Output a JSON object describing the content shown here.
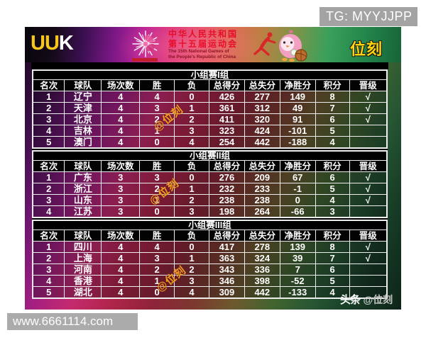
{
  "overlays": {
    "telegram_badge": "TG: MYYJJPP",
    "website": "www.6661114.com",
    "diagonal_watermark": "@位刻",
    "credit_bold": "头条",
    "credit_handle": "@位刻"
  },
  "banner": {
    "logo_left_primary": "UU",
    "logo_left_secondary": "K",
    "title_cn_line1": "中华人民共和国",
    "title_cn_line2": "第十五届运动会",
    "title_en_line1": "The 15th National Games of",
    "title_en_line2": "the People's Republic of China",
    "logo_right": "位刻",
    "accent_colors": {
      "logo_yellow": "#f7c51e",
      "title_red": "#e50f2a",
      "check_white": "#ffffff"
    }
  },
  "chart_data": [
    {
      "type": "table",
      "title": "小组赛I组",
      "columns": [
        "名次",
        "球队",
        "场次数",
        "胜",
        "负",
        "总得分",
        "总失分",
        "净胜分",
        "积分",
        "晋级"
      ],
      "rows": [
        [
          "1",
          "辽宁",
          "4",
          "4",
          "0",
          "426",
          "277",
          "149",
          "8",
          "√"
        ],
        [
          "2",
          "天津",
          "4",
          "3",
          "1",
          "361",
          "312",
          "49",
          "7",
          "√"
        ],
        [
          "3",
          "北京",
          "4",
          "2",
          "2",
          "411",
          "320",
          "91",
          "6",
          "√"
        ],
        [
          "4",
          "吉林",
          "4",
          "1",
          "3",
          "323",
          "424",
          "-101",
          "5",
          ""
        ],
        [
          "5",
          "澳门",
          "4",
          "0",
          "4",
          "254",
          "442",
          "-188",
          "4",
          ""
        ]
      ]
    },
    {
      "type": "table",
      "title": "小组赛II组",
      "columns": [
        "名次",
        "球队",
        "场次数",
        "胜",
        "负",
        "总得分",
        "总失分",
        "净胜分",
        "积分",
        "晋级"
      ],
      "rows": [
        [
          "1",
          "广东",
          "3",
          "3",
          "0",
          "276",
          "209",
          "67",
          "6",
          "√"
        ],
        [
          "2",
          "浙江",
          "3",
          "2",
          "1",
          "232",
          "233",
          "-1",
          "5",
          "√"
        ],
        [
          "3",
          "山东",
          "3",
          "1",
          "2",
          "238",
          "238",
          "0",
          "4",
          "√"
        ],
        [
          "4",
          "江苏",
          "3",
          "0",
          "3",
          "198",
          "264",
          "-66",
          "3",
          ""
        ]
      ]
    },
    {
      "type": "table",
      "title": "小组赛III组",
      "columns": [
        "名次",
        "球队",
        "场次数",
        "胜",
        "负",
        "总得分",
        "总失分",
        "净胜分",
        "积分",
        "晋级"
      ],
      "rows": [
        [
          "1",
          "四川",
          "4",
          "4",
          "0",
          "417",
          "278",
          "139",
          "8",
          "√"
        ],
        [
          "2",
          "上海",
          "4",
          "3",
          "1",
          "363",
          "324",
          "39",
          "7",
          "√"
        ],
        [
          "3",
          "河南",
          "4",
          "2",
          "2",
          "343",
          "336",
          "7",
          "6",
          ""
        ],
        [
          "4",
          "香港",
          "4",
          "1",
          "3",
          "346",
          "398",
          "-52",
          "5",
          ""
        ],
        [
          "5",
          "湖北",
          "4",
          "0",
          "4",
          "309",
          "442",
          "-133",
          "4",
          ""
        ]
      ]
    }
  ]
}
